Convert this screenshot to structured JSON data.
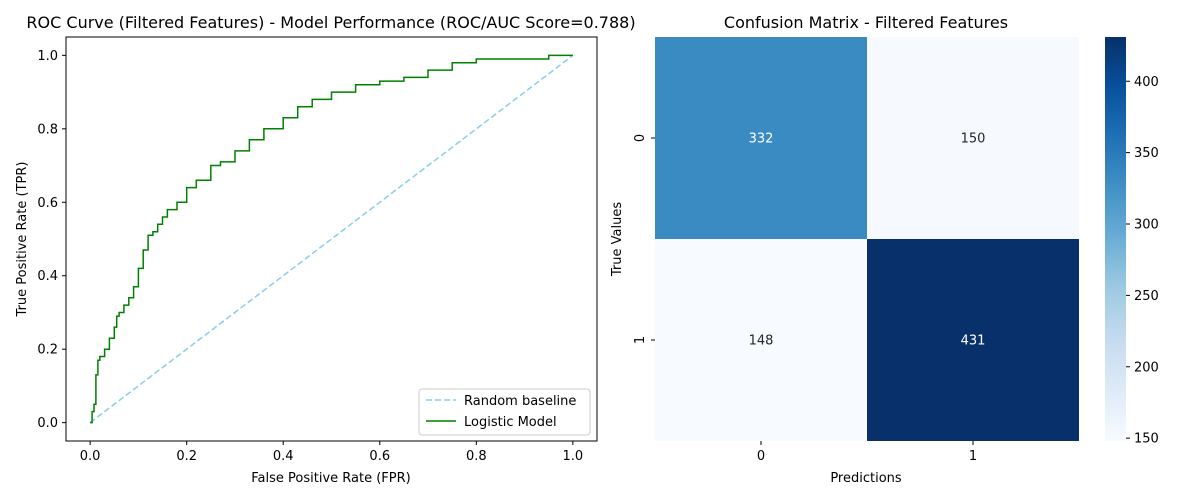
{
  "chart_data": [
    {
      "type": "line",
      "title": "ROC Curve (Filtered Features) - Model Performance (ROC/AUC Score=0.788)",
      "xlabel": "False Positive Rate (FPR)",
      "ylabel": "True Positive Rate (TPR)",
      "xlim": [
        -0.05,
        1.05
      ],
      "ylim": [
        -0.05,
        1.05
      ],
      "xticks": [
        0.0,
        0.2,
        0.4,
        0.6,
        0.8,
        1.0
      ],
      "yticks": [
        0.0,
        0.2,
        0.4,
        0.6,
        0.8,
        1.0
      ],
      "tick_labels_x": [
        "0.0",
        "0.2",
        "0.4",
        "0.6",
        "0.8",
        "1.0"
      ],
      "tick_labels_y": [
        "0.0",
        "0.2",
        "0.4",
        "0.6",
        "0.8",
        "1.0"
      ],
      "grid": false,
      "legend_position": "lower-right",
      "series": [
        {
          "name": "Random baseline",
          "style": "dashed",
          "color": "#87ceeb",
          "x": [
            0.0,
            1.0
          ],
          "y": [
            0.0,
            1.0
          ]
        },
        {
          "name": "Logistic Model",
          "style": "solid",
          "color": "#008000",
          "x": [
            0.0,
            0.004,
            0.008,
            0.012,
            0.012,
            0.016,
            0.02,
            0.03,
            0.04,
            0.05,
            0.055,
            0.06,
            0.07,
            0.08,
            0.09,
            0.1,
            0.11,
            0.12,
            0.13,
            0.14,
            0.15,
            0.16,
            0.18,
            0.2,
            0.22,
            0.25,
            0.27,
            0.3,
            0.33,
            0.36,
            0.4,
            0.43,
            0.46,
            0.5,
            0.55,
            0.6,
            0.65,
            0.7,
            0.75,
            0.8,
            0.9,
            0.95,
            1.0
          ],
          "y": [
            0.0,
            0.03,
            0.05,
            0.05,
            0.13,
            0.17,
            0.18,
            0.2,
            0.23,
            0.26,
            0.29,
            0.3,
            0.32,
            0.34,
            0.37,
            0.42,
            0.47,
            0.51,
            0.52,
            0.54,
            0.56,
            0.58,
            0.6,
            0.64,
            0.66,
            0.7,
            0.71,
            0.74,
            0.77,
            0.8,
            0.83,
            0.86,
            0.88,
            0.9,
            0.92,
            0.93,
            0.94,
            0.96,
            0.98,
            0.99,
            0.99,
            1.0,
            1.0
          ]
        }
      ]
    },
    {
      "type": "heatmap",
      "title": "Confusion Matrix - Filtered Features",
      "xlabel": "Predictions",
      "ylabel": "True Values",
      "x_categories": [
        "0",
        "1"
      ],
      "y_categories": [
        "0",
        "1"
      ],
      "values": [
        [
          332,
          150
        ],
        [
          148,
          431
        ]
      ],
      "colormap": "Blues",
      "colorbar": {
        "min": 148,
        "max": 431,
        "ticks": [
          150,
          200,
          250,
          300,
          350,
          400
        ],
        "tick_labels": [
          "150",
          "200",
          "250",
          "300",
          "350",
          "400"
        ]
      }
    }
  ]
}
